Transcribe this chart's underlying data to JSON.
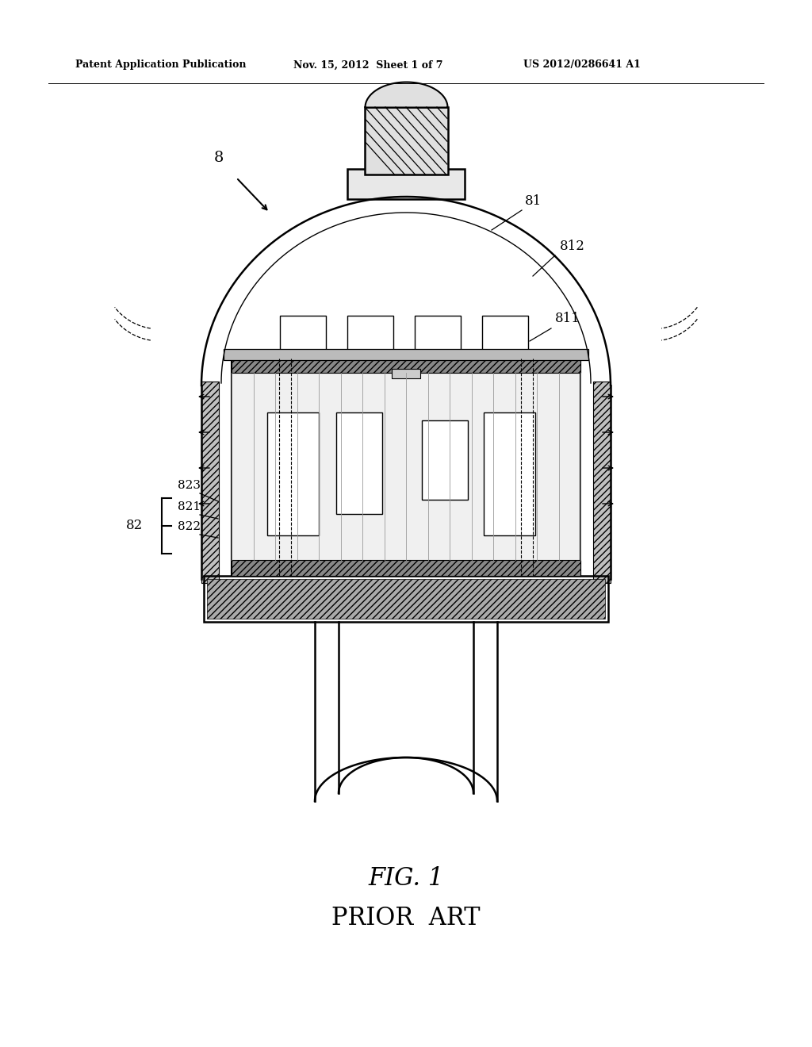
{
  "bg_color": "#ffffff",
  "line_color": "#000000",
  "header_left": "Patent Application Publication",
  "header_mid": "Nov. 15, 2012  Sheet 1 of 7",
  "header_right": "US 2012/0286641 A1",
  "fig_label": "FIG. 1",
  "prior_art": "PRIOR  ART",
  "label_8": "8",
  "label_81": "81",
  "label_811": "811",
  "label_812": "812",
  "label_82": "82",
  "label_821": "821",
  "label_822": "822",
  "label_823": "823"
}
